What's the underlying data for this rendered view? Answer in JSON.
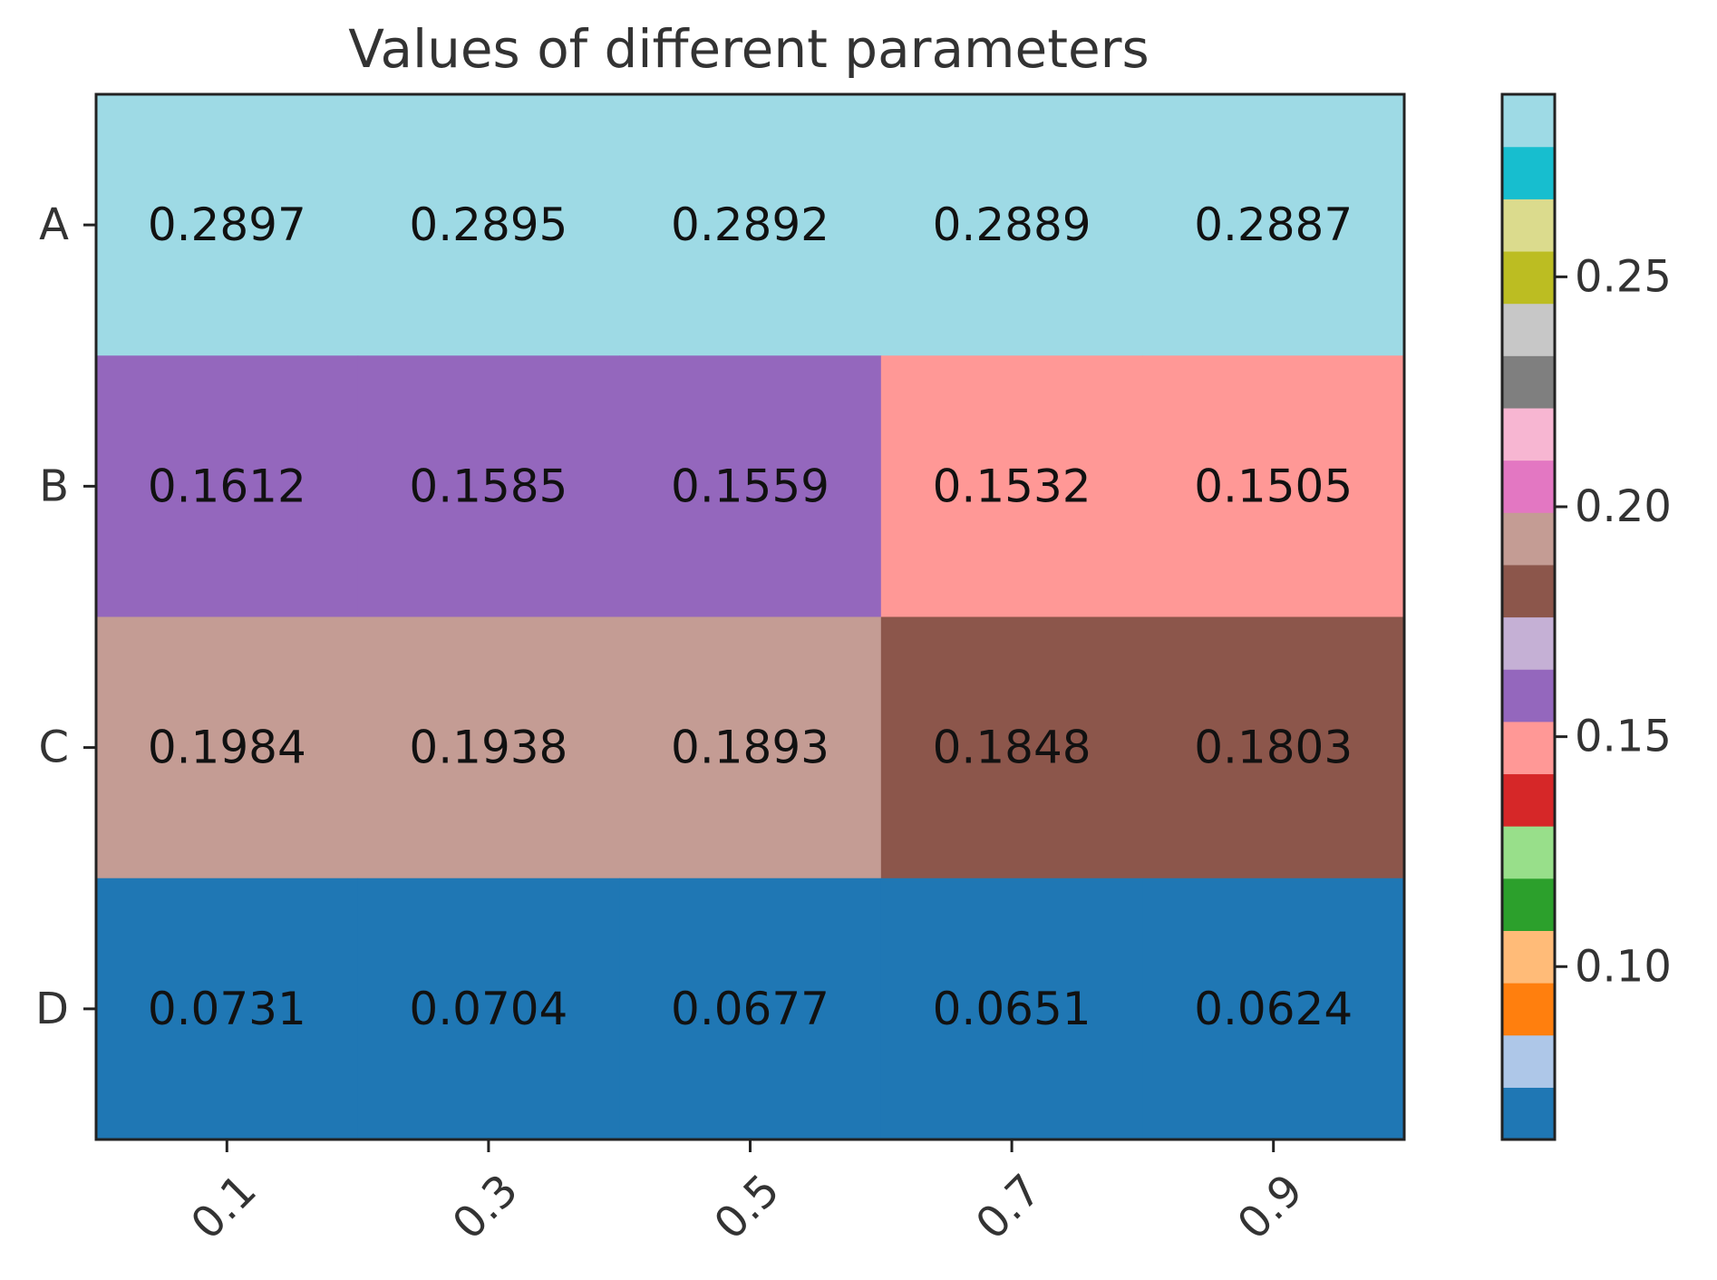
{
  "chart_data": {
    "type": "heatmap",
    "title": "Values of different parameters",
    "rows": [
      "A",
      "B",
      "C",
      "D"
    ],
    "columns": [
      "0.1",
      "0.3",
      "0.5",
      "0.7",
      "0.9"
    ],
    "values": [
      [
        0.2897,
        0.2895,
        0.2892,
        0.2889,
        0.2887
      ],
      [
        0.1612,
        0.1585,
        0.1559,
        0.1532,
        0.1505
      ],
      [
        0.1984,
        0.1938,
        0.1893,
        0.1848,
        0.1803
      ],
      [
        0.0731,
        0.0704,
        0.0677,
        0.0651,
        0.0624
      ]
    ],
    "cell_labels": [
      [
        "0.2897",
        "0.2895",
        "0.2892",
        "0.2889",
        "0.2887"
      ],
      [
        "0.1612",
        "0.1585",
        "0.1559",
        "0.1532",
        "0.1505"
      ],
      [
        "0.1984",
        "0.1938",
        "0.1893",
        "0.1848",
        "0.1803"
      ],
      [
        "0.0731",
        "0.0704",
        "0.0677",
        "0.0651",
        "0.0624"
      ]
    ],
    "colormap": "tab20",
    "colormap_colors": [
      "#1f77b4",
      "#aec7e8",
      "#ff7f0e",
      "#ffbb78",
      "#2ca02c",
      "#98df8a",
      "#d62728",
      "#ff9896",
      "#9467bd",
      "#c5b0d5",
      "#8c564b",
      "#c49c94",
      "#e377c2",
      "#f7b6d2",
      "#7f7f7f",
      "#c7c7c7",
      "#bcbd22",
      "#dbdb8d",
      "#17becf",
      "#9edae5"
    ],
    "vmin": 0.0624,
    "vmax": 0.2897,
    "colorbar_ticks": [
      "0.10",
      "0.15",
      "0.20",
      "0.25"
    ],
    "x_tick_rotation": 45,
    "grid": false
  }
}
